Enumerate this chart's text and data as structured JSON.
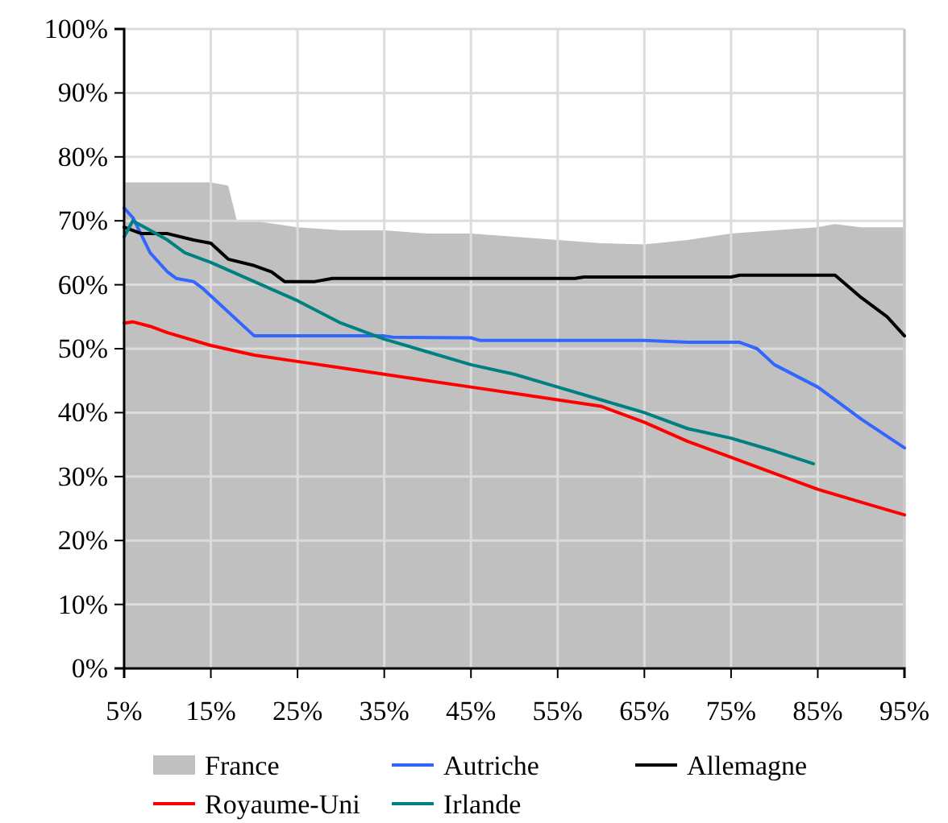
{
  "chart_data": {
    "type": "line",
    "x": [
      5,
      10,
      15,
      17,
      18,
      20,
      25,
      30,
      35,
      40,
      45,
      50,
      55,
      60,
      65,
      70,
      75,
      80,
      85,
      87,
      90,
      95
    ],
    "xlim": [
      5,
      95
    ],
    "xticks": [
      {
        "value": 5,
        "label": "5%"
      },
      {
        "value": 15,
        "label": "15%"
      },
      {
        "value": 25,
        "label": "25%"
      },
      {
        "value": 35,
        "label": "35%"
      },
      {
        "value": 45,
        "label": "45%"
      },
      {
        "value": 55,
        "label": "55%"
      },
      {
        "value": 65,
        "label": "65%"
      },
      {
        "value": 75,
        "label": "75%"
      },
      {
        "value": 85,
        "label": "85%"
      },
      {
        "value": 95,
        "label": "95%"
      }
    ],
    "ylim": [
      0,
      100
    ],
    "yticks": [
      {
        "value": 0,
        "label": "0%"
      },
      {
        "value": 10,
        "label": "10%"
      },
      {
        "value": 20,
        "label": "20%"
      },
      {
        "value": 30,
        "label": "30%"
      },
      {
        "value": 40,
        "label": "40%"
      },
      {
        "value": 50,
        "label": "50%"
      },
      {
        "value": 60,
        "label": "60%"
      },
      {
        "value": 70,
        "label": "70%"
      },
      {
        "value": 80,
        "label": "80%"
      },
      {
        "value": 90,
        "label": "90%"
      },
      {
        "value": 100,
        "label": "100%"
      }
    ],
    "grid": true,
    "legend": "bottom",
    "series": [
      {
        "name": "France",
        "type": "area",
        "color": "#c0c0c0",
        "values": [
          76,
          76,
          76,
          75.5,
          70,
          70,
          69,
          68.5,
          68.5,
          68,
          68,
          67.5,
          67,
          66.5,
          66.3,
          67,
          68,
          68.5,
          69,
          69.5,
          69,
          69
        ]
      },
      {
        "name": "Autriche",
        "color": "#3366ff",
        "x": [
          5,
          6,
          8,
          10,
          11,
          13,
          14,
          20,
          35,
          36,
          45,
          46,
          65,
          70,
          76,
          78,
          80,
          85,
          90,
          95
        ],
        "values": [
          72,
          70.5,
          65,
          62,
          61,
          60.5,
          59.5,
          52,
          52,
          51.8,
          51.7,
          51.3,
          51.3,
          51,
          51,
          50,
          47.5,
          44,
          39,
          34.5
        ]
      },
      {
        "name": "Allemagne",
        "color": "#000000",
        "x": [
          5,
          7,
          10,
          13,
          15,
          17,
          20,
          22,
          23.5,
          27,
          29,
          57,
          58,
          75,
          76,
          87,
          90,
          93,
          95
        ],
        "values": [
          69,
          68,
          68,
          67,
          66.5,
          64,
          63,
          62,
          60.5,
          60.5,
          61,
          61,
          61.2,
          61.2,
          61.5,
          61.5,
          58,
          55,
          52
        ]
      },
      {
        "name": "Royaume-Uni",
        "color": "#ff0000",
        "x": [
          5,
          6,
          8,
          10,
          15,
          20,
          25,
          30,
          35,
          40,
          45,
          50,
          55,
          60,
          65,
          70,
          75,
          80,
          85,
          90,
          95
        ],
        "values": [
          54,
          54.2,
          53.5,
          52.5,
          50.5,
          49,
          48,
          47,
          46,
          45,
          44,
          43,
          42,
          41,
          38.5,
          35.5,
          33,
          30.5,
          28,
          26,
          24
        ]
      },
      {
        "name": "Irlande",
        "color": "#008080",
        "x": [
          5,
          6,
          8,
          10,
          12,
          15,
          20,
          25,
          30,
          35,
          40,
          45,
          50,
          55,
          60,
          65,
          70,
          75,
          80,
          84.5
        ],
        "values": [
          67.5,
          70,
          68.5,
          67,
          65,
          63.5,
          60.5,
          57.5,
          54,
          51.5,
          49.5,
          47.5,
          46,
          44,
          42,
          40,
          37.5,
          36,
          34,
          32
        ]
      }
    ]
  }
}
